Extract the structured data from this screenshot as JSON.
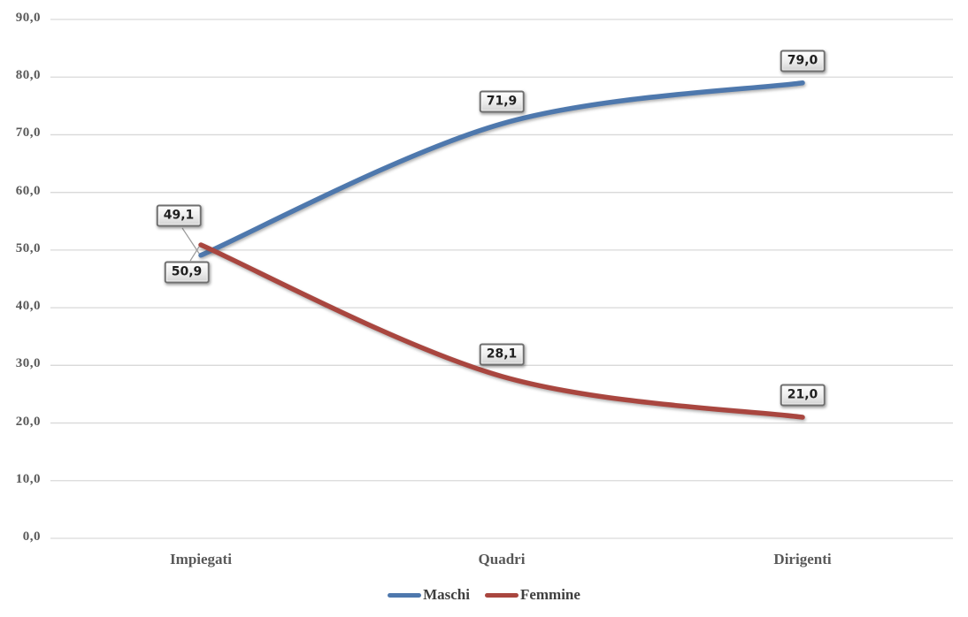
{
  "chart_data": {
    "type": "line",
    "title": "",
    "xlabel": "",
    "ylabel": "",
    "categories": [
      "Impiegati",
      "Quadri",
      "Dirigenti"
    ],
    "series": [
      {
        "name": "Maschi",
        "color": "#4e78ad",
        "values": [
          49.1,
          71.9,
          79.0
        ],
        "point_labels": [
          "49,1",
          "71,9",
          "79,0"
        ]
      },
      {
        "name": "Femmine",
        "color": "#a9463f",
        "values": [
          50.9,
          28.1,
          21.0
        ],
        "point_labels": [
          "50,9",
          "28,1",
          "21,0"
        ]
      }
    ],
    "ylim": [
      0,
      90
    ],
    "ytick_step": 10,
    "ytick_labels": [
      "0,0",
      "10,0",
      "20,0",
      "30,0",
      "40,0",
      "50,0",
      "60,0",
      "70,0",
      "80,0",
      "90,0"
    ],
    "grid": true,
    "smoothed": true,
    "legend_position": "bottom"
  },
  "colors": {
    "background": "#ffffff",
    "grid": "#d9d9d9",
    "axis_text": "#595959",
    "data_label_text": "#1f1f1f",
    "data_label_border": "#6f6f6f",
    "leader_line": "#9b9b9b"
  }
}
